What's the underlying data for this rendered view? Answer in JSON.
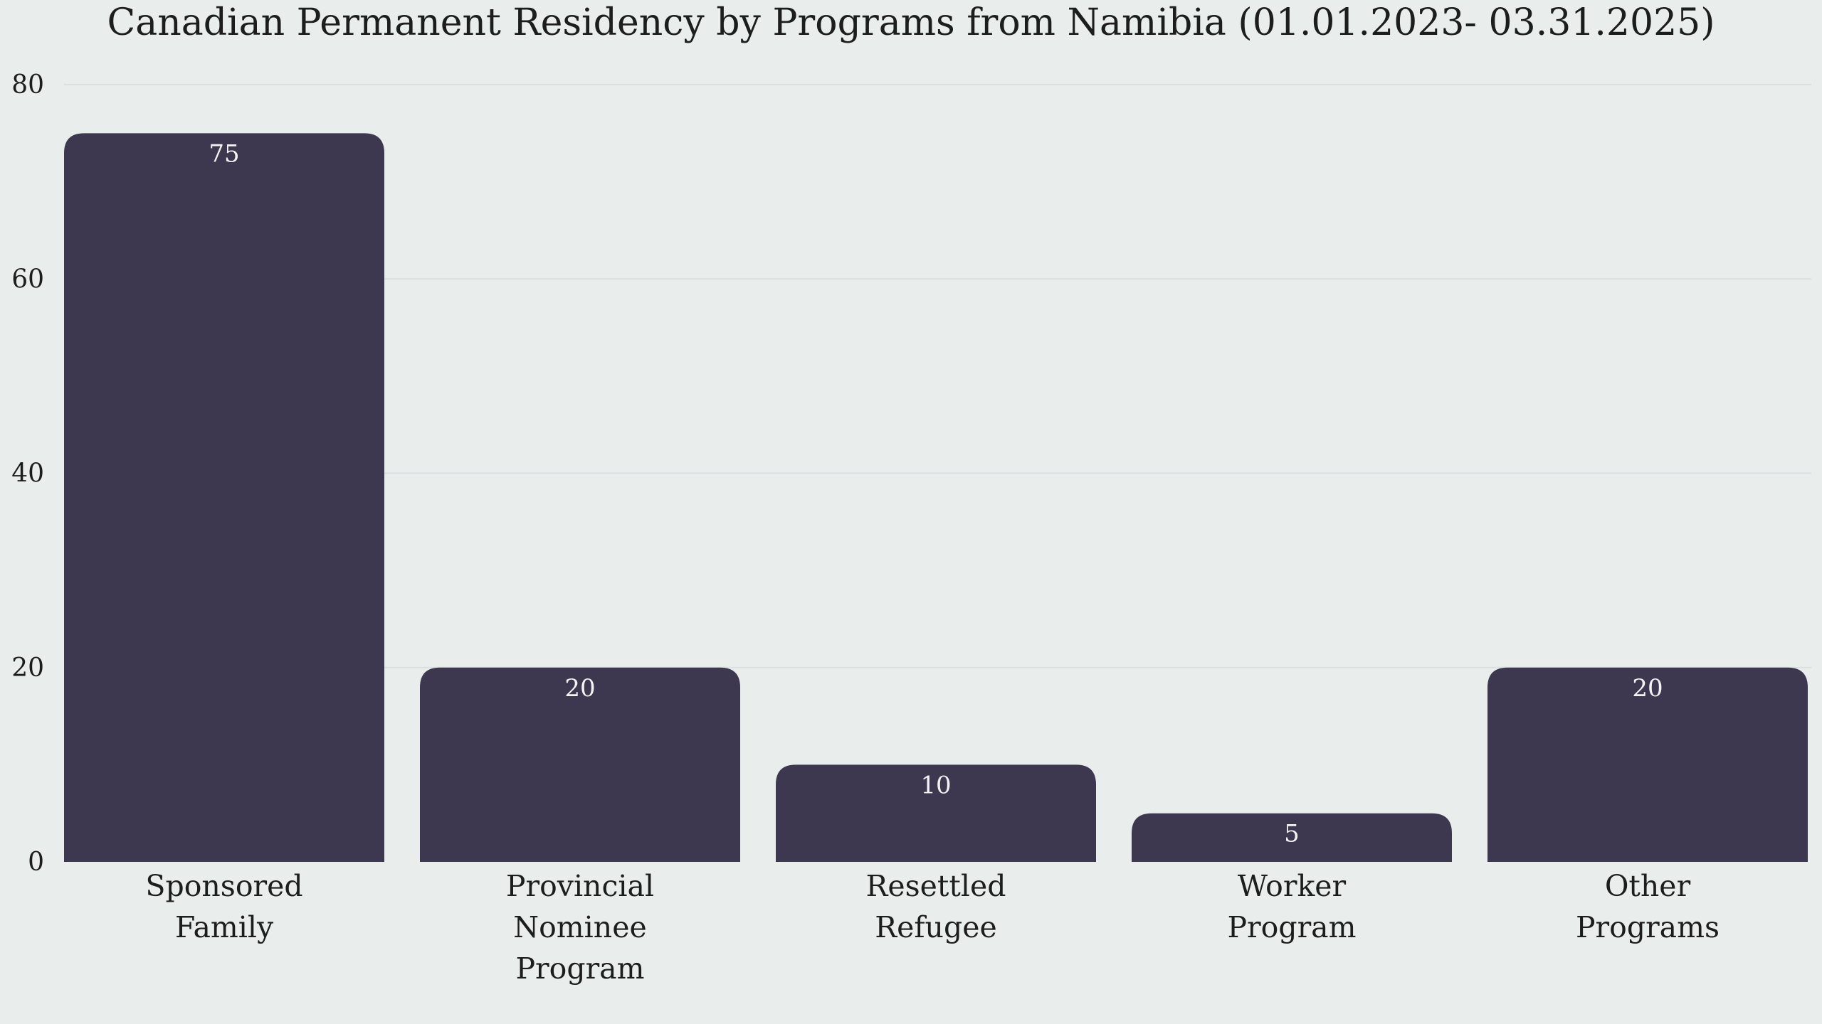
{
  "chart_data": {
    "type": "bar",
    "title": "Canadian Permanent Residency by Programs from Namibia (01.01.2023- 03.31.2025)",
    "categories": [
      [
        "Sponsored",
        "Family"
      ],
      [
        "Provincial",
        "Nominee",
        "Program"
      ],
      [
        "Resettled",
        "Refugee"
      ],
      [
        "Worker",
        "Program"
      ],
      [
        "Other",
        "Programs"
      ]
    ],
    "values": [
      75,
      20,
      10,
      5,
      20
    ],
    "data_labels": [
      "75",
      "20",
      "10",
      "5",
      "20"
    ],
    "xlabel": "",
    "ylabel": "",
    "ylim": [
      0,
      80
    ],
    "yticks": [
      0,
      20,
      40,
      60,
      80
    ],
    "grid": true,
    "legend": "none",
    "colors": {
      "bar": "#3d384f",
      "background": "#e9eeed",
      "grid": "#dcdfdf",
      "text": "#1d1d1d",
      "data_label": "#f3f3f3"
    }
  }
}
